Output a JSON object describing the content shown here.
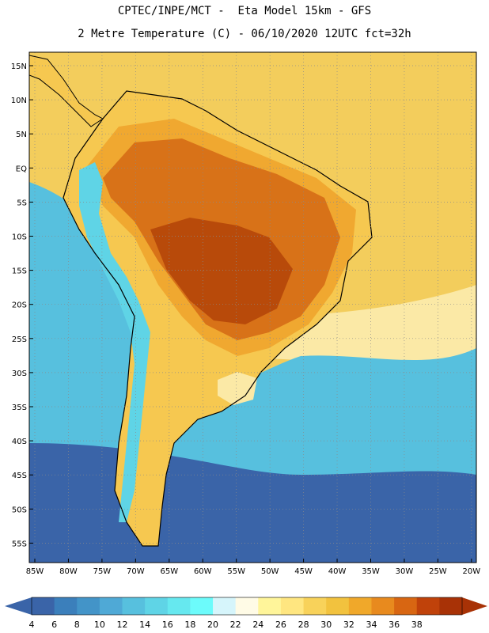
{
  "title": {
    "line1": "CPTEC/INPE/MCT -  Eta Model 15km - GFS",
    "line2": "2 Metre Temperature (C) - 06/10/2020 12UTC fct=32h"
  },
  "map": {
    "region": "South America",
    "lat_labels": [
      "15N",
      "10N",
      "5N",
      "EQ",
      "5S",
      "10S",
      "15S",
      "20S",
      "25S",
      "30S",
      "35S",
      "40S",
      "45S",
      "50S",
      "55S"
    ],
    "lon_labels": [
      "85W",
      "80W",
      "75W",
      "70W",
      "65W",
      "60W",
      "55W",
      "50W",
      "45W",
      "40W",
      "35W",
      "30W",
      "25W",
      "20W"
    ]
  },
  "colorbar": {
    "labels": [
      "4",
      "6",
      "8",
      "10",
      "12",
      "14",
      "16",
      "18",
      "20",
      "22",
      "24",
      "26",
      "28",
      "30",
      "32",
      "34",
      "36",
      "38"
    ],
    "colors": [
      "#3a64a8",
      "#3b7fbb",
      "#4394c8",
      "#4fa9d6",
      "#57c0de",
      "#5fd4e6",
      "#66e8ef",
      "#6cfbfb",
      "#d6f5fb",
      "#fffbe6",
      "#fff59a",
      "#ffe680",
      "#f8d25a",
      "#f2c23e",
      "#f0a82a",
      "#e88a1e",
      "#d86612",
      "#c0420a",
      "#a83206"
    ],
    "end_low": "#3a64a8",
    "end_high": "#a83206"
  },
  "palette": {
    "land_hot": "#b84a0a",
    "land_warm": "#d87218",
    "land_mid": "#f0a830",
    "land_mild": "#f6c850",
    "andes_cold": "#5fd4e6",
    "ocean_trop": "#f3cd5c",
    "ocean_sub": "#fbe9a6",
    "ocean_cool": "#57c0de",
    "ocean_cold": "#3a64a8",
    "coastline": "#000000"
  }
}
